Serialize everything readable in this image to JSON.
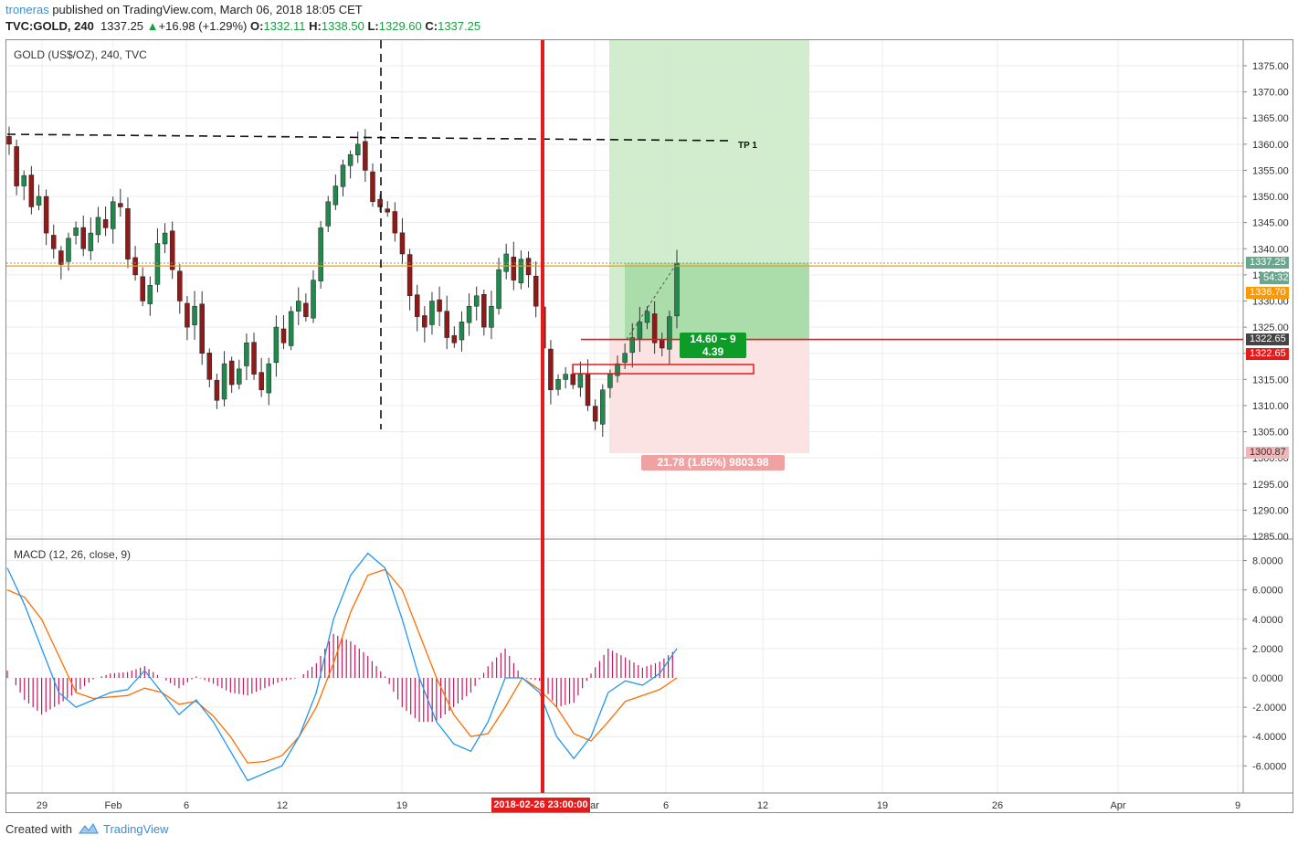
{
  "header": {
    "user": "troneras",
    "published": "published on TradingView.com, March 06, 2018 18:05 CET",
    "symbol": "TVC:GOLD, 240",
    "last": "1337.25",
    "change_arrow": "▲",
    "change": "+16.98 (+1.29%)",
    "o_label": "O:",
    "o": "1332.11",
    "h_label": "H:",
    "h": "1338.50",
    "l_label": "L:",
    "l": "1329.60",
    "c_label": "C:",
    "c": "1337.25"
  },
  "price_panel": {
    "title": "GOLD (US$/OZ), 240, TVC"
  },
  "macd_panel": {
    "title": "MACD (12, 26, close, 9)"
  },
  "footer": {
    "created_with": "Created with",
    "brand": "TradingView"
  },
  "annotations": {
    "tp_label": "TP 1",
    "target_box": "14.60 ~ 9",
    "target_box_line2": "4.39",
    "stop_box": "21.78 (1.65%) 9803.98",
    "time_tag": "2018-02-26 23:00:00"
  },
  "price_tags": {
    "last": "1337.25",
    "countdown": "54:32",
    "orange": "1336.70",
    "entry": "1322.65",
    "entry_red": "1322.65",
    "stop": "1300.87"
  },
  "colors": {
    "up_candle": "#26a69a",
    "down_candle": "#ef5350",
    "macd_line": "#2196f3",
    "signal_line": "#ff6d00",
    "histogram": "#c2185b",
    "profit_zone": "#cfeccb",
    "loss_zone": "#fbe3e3",
    "red_line": "#e31b1b",
    "orange_line": "#ff9800"
  },
  "chart_data": [
    {
      "type": "candlestick",
      "title": "GOLD (US$/OZ), 240, TVC",
      "y_ticks": [
        1285,
        1290,
        1295,
        1300,
        1305,
        1310,
        1315,
        1320,
        1325,
        1330,
        1335,
        1340,
        1345,
        1350,
        1355,
        1360,
        1365,
        1370,
        1375
      ],
      "y_tick_labels": [
        "1285.00",
        "1290.00",
        "1295.00",
        "1300.00",
        "1305.00",
        "1310.00",
        "1315.00",
        "1320.00",
        "1325.00",
        "1330.00",
        "1335.00",
        "1340.00",
        "1345.00",
        "1350.00",
        "1355.00",
        "1360.00",
        "1365.00",
        "1370.00",
        "1375.00"
      ],
      "ylim": [
        1283,
        1380
      ],
      "x_tick_labels": [
        "29",
        "Feb",
        "6",
        "12",
        "19",
        "ar",
        "6",
        "12",
        "19",
        "26",
        "Apr",
        "9"
      ],
      "close_path": [
        1360,
        1352,
        1354,
        1348,
        1350,
        1343,
        1340,
        1337,
        1342,
        1344,
        1340,
        1343,
        1346,
        1344,
        1349,
        1348,
        1338,
        1335,
        1330,
        1333,
        1341,
        1343,
        1336,
        1330,
        1325,
        1329,
        1320,
        1315,
        1311,
        1318,
        1314,
        1317,
        1322,
        1316,
        1313,
        1318,
        1325,
        1322,
        1328,
        1330,
        1327,
        1334,
        1344,
        1349,
        1352,
        1356,
        1358,
        1360,
        1355,
        1349,
        1348,
        1347,
        1343,
        1339,
        1331,
        1327,
        1325,
        1330,
        1328,
        1323,
        1322,
        1326,
        1329,
        1331,
        1325,
        1329,
        1336,
        1339,
        1334,
        1338,
        1335,
        1329,
        1321,
        1313,
        1315,
        1316,
        1314,
        1316,
        1310,
        1307,
        1313,
        1316,
        1318,
        1320,
        1323,
        1326,
        1328,
        1322,
        1321,
        1327,
        1337.25
      ],
      "ohlc_latest": {
        "open": 1332.11,
        "high": 1338.5,
        "low": 1329.6,
        "close": 1337.25
      },
      "horizontal_levels": {
        "last": 1337.25,
        "orange": 1336.7,
        "entry": 1322.65,
        "stop": 1300.87,
        "tp1": 1361
      }
    },
    {
      "type": "line",
      "title": "MACD (12, 26, close, 9)",
      "y_ticks": [
        -6,
        -4,
        -2,
        0,
        2,
        4,
        6,
        8
      ],
      "y_tick_labels": [
        "-6.0000",
        "-4.0000",
        "-2.0000",
        "0.0000",
        "2.0000",
        "4.0000",
        "6.0000",
        "8.0000"
      ],
      "ylim": [
        -7.8,
        9.2
      ],
      "series": [
        {
          "values": [
            7.5,
            5,
            2,
            -1,
            -2,
            -1.5,
            -1,
            -0.8,
            0.5,
            -1,
            -2.5,
            -1.5,
            -3,
            -5,
            -7,
            -6.5,
            -6,
            -4,
            -1,
            4,
            7,
            8.5,
            7.5,
            4,
            0,
            -3,
            -4.5,
            -5,
            -3,
            0,
            0,
            -1,
            -4,
            -5.5,
            -4,
            -1,
            -0.2,
            -0.5,
            0.3,
            2
          ]
        },
        {
          "values": [
            6,
            5.5,
            4,
            1.5,
            -1,
            -1.4,
            -1.3,
            -1.2,
            -0.7,
            -1,
            -1.8,
            -1.6,
            -2.6,
            -4,
            -5.8,
            -5.7,
            -5.3,
            -4,
            -2,
            1,
            4.5,
            7,
            7.4,
            6,
            3,
            0,
            -2.5,
            -4,
            -3.8,
            -2,
            0,
            -0.8,
            -2,
            -3.8,
            -4.3,
            -3,
            -1.6,
            -1.2,
            -0.8,
            0
          ]
        },
        {
          "values": [
            0.5,
            -1.5,
            -2.5,
            -1.8,
            -1,
            -0.1,
            0.3,
            0.4,
            0.8,
            0,
            -0.7,
            0.1,
            -0.4,
            -1,
            -1.2,
            -0.7,
            -0.2,
            0,
            1,
            3,
            2.5,
            1.5,
            0.1,
            -2,
            -3,
            -3,
            -2,
            -1,
            0.8,
            2,
            0,
            -0.2,
            -2,
            -1.7,
            0.3,
            2,
            1.4,
            0.7,
            1.1,
            2
          ]
        }
      ]
    }
  ]
}
